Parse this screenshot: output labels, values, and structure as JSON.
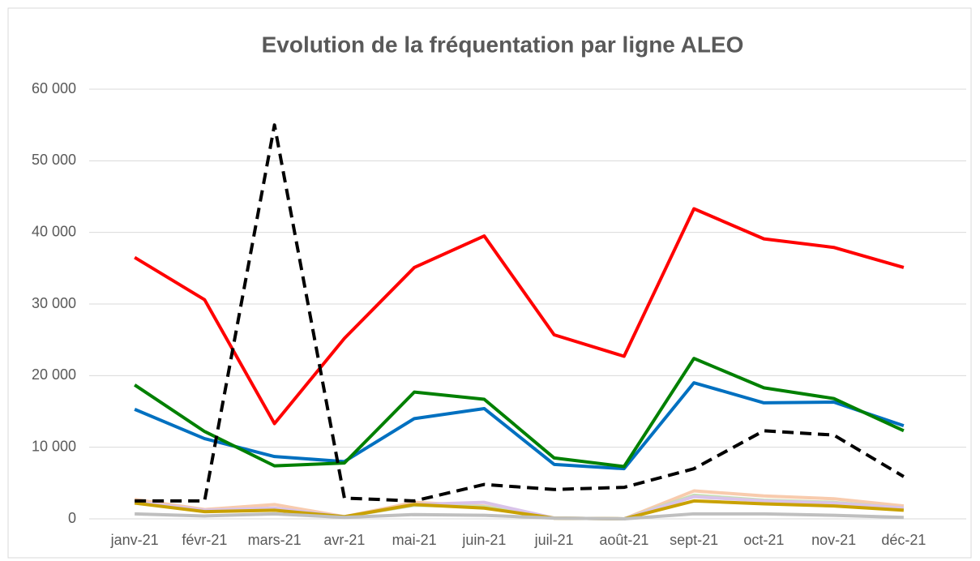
{
  "chart_data": {
    "type": "line",
    "title": "Evolution de la fréquentation par ligne ALEO",
    "categories": [
      "janv-21",
      "févr-21",
      "mars-21",
      "avr-21",
      "mai-21",
      "juin-21",
      "juil-21",
      "août-21",
      "sept-21",
      "oct-21",
      "nov-21",
      "déc-21"
    ],
    "series": [
      {
        "color": "#f8cbad",
        "values": [
          2700,
          1300,
          2000,
          300,
          2300,
          1800,
          100,
          0,
          3900,
          3200,
          2800,
          1800
        ]
      },
      {
        "color": "#c5e0b4",
        "values": [
          2300,
          1100,
          1400,
          300,
          1900,
          1700,
          100,
          0,
          3300,
          2600,
          2300,
          1500
        ]
      },
      {
        "color": "#d9c3e9",
        "values": [
          2400,
          1200,
          1500,
          300,
          2000,
          2300,
          100,
          0,
          3100,
          2500,
          2200,
          1500
        ]
      },
      {
        "color": "#c9a100",
        "values": [
          2200,
          1000,
          1200,
          300,
          2000,
          1500,
          100,
          0,
          2500,
          2100,
          1800,
          1200
        ]
      },
      {
        "color": "#bfbfbf",
        "values": [
          700,
          400,
          700,
          200,
          600,
          500,
          100,
          0,
          700,
          700,
          500,
          200
        ]
      },
      {
        "color": "#0070c0",
        "values": [
          15300,
          11200,
          8700,
          8000,
          14000,
          15400,
          7600,
          7000,
          19000,
          16200,
          16300,
          13000
        ]
      },
      {
        "color": "#008000",
        "values": [
          18700,
          12200,
          7400,
          7800,
          17700,
          16700,
          8500,
          7300,
          22400,
          18300,
          16800,
          12300
        ]
      },
      {
        "color": "#ff0000",
        "values": [
          36500,
          30600,
          13300,
          25200,
          35100,
          39500,
          25700,
          22700,
          43300,
          39100,
          37900,
          35100
        ]
      },
      {
        "color": "#000000",
        "dashed": true,
        "values": [
          2500,
          2500,
          55000,
          2900,
          2500,
          4800,
          4100,
          4400,
          7000,
          12300,
          11700,
          5900
        ]
      }
    ],
    "ylim": [
      0,
      60000
    ],
    "yticks": [
      0,
      {
        "value": 10000,
        "label": "10 000"
      },
      {
        "value": 20000,
        "label": "20 000"
      },
      {
        "value": 30000,
        "label": "30 000"
      },
      {
        "value": 40000,
        "label": "40 000"
      },
      {
        "value": 50000,
        "label": "50 000"
      },
      {
        "value": 60000,
        "label": "60 000"
      }
    ],
    "grid": true
  }
}
